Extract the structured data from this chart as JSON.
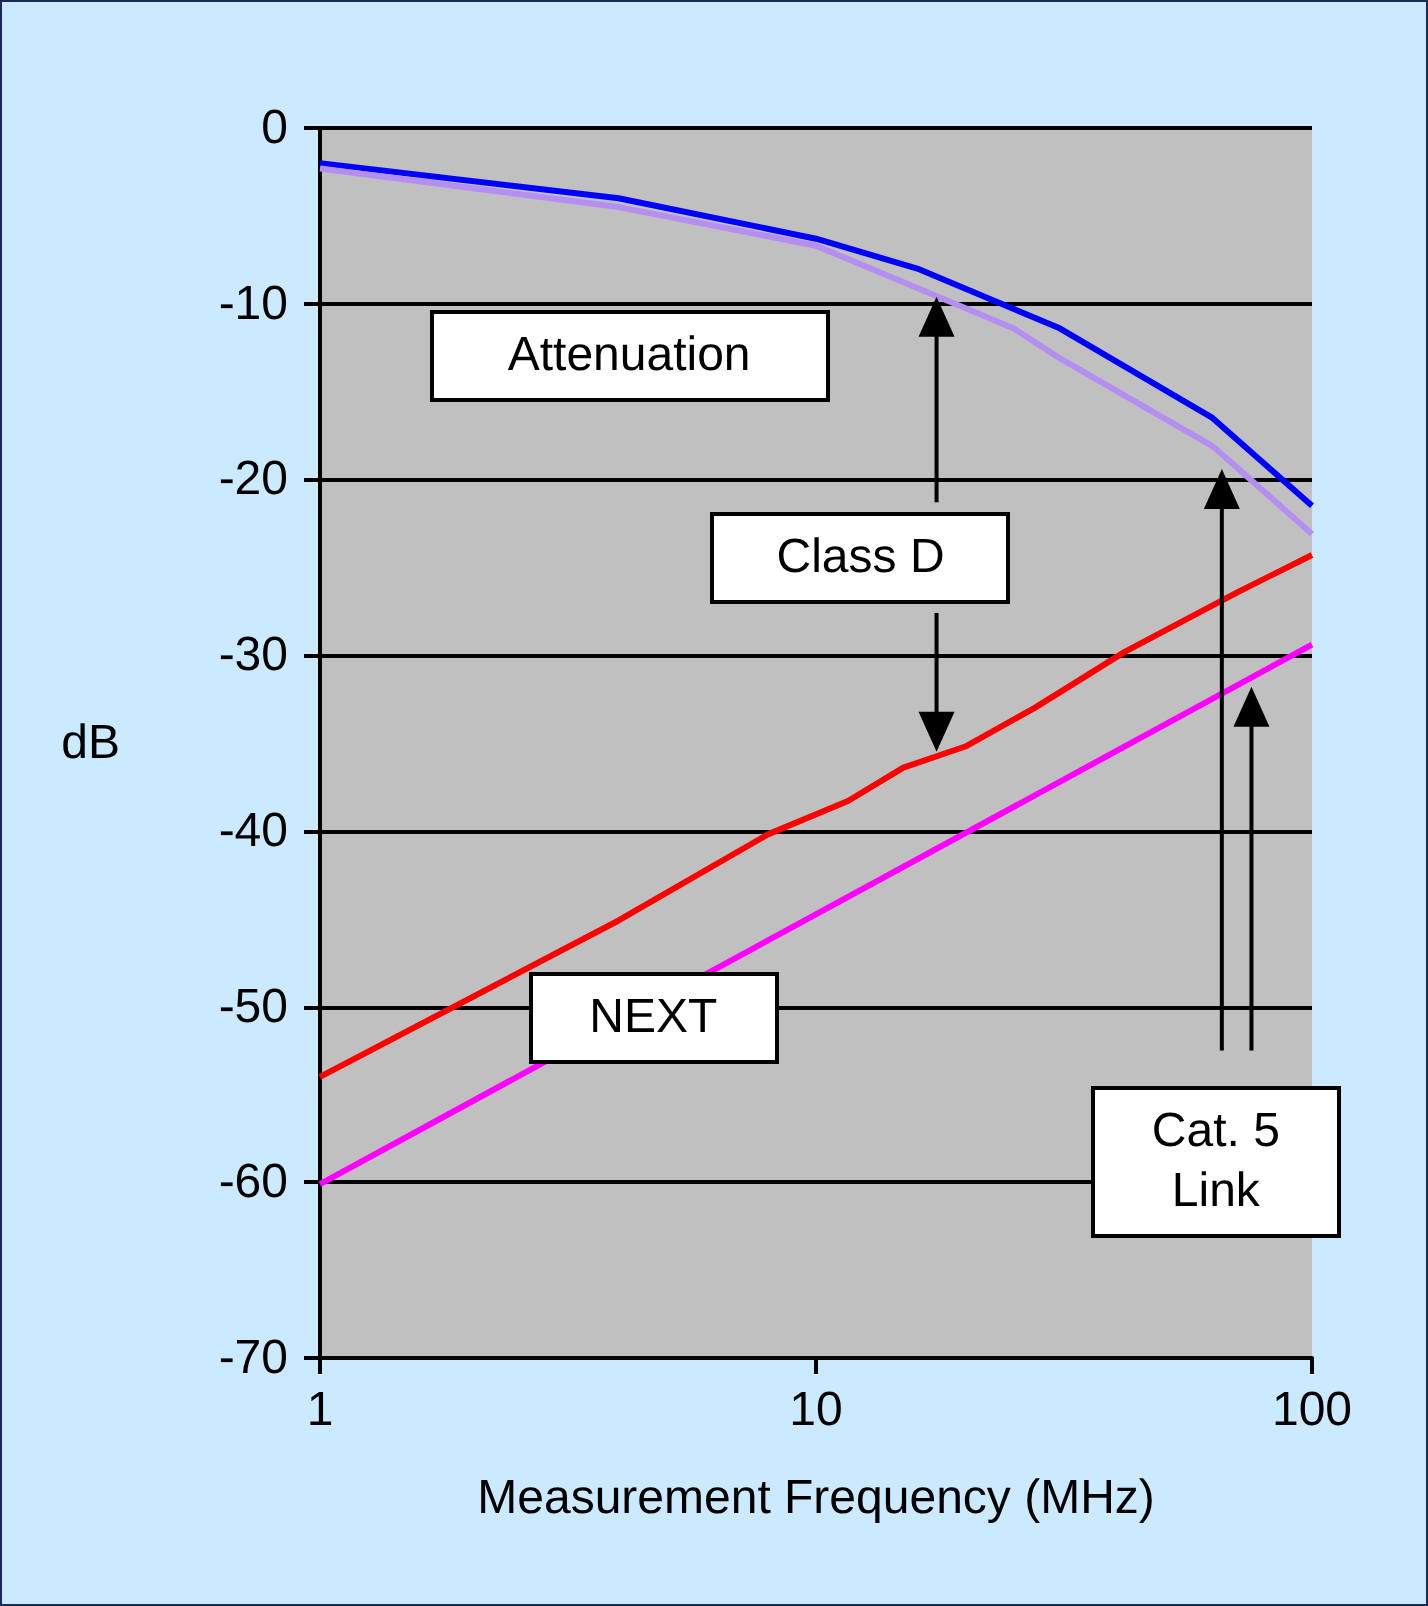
{
  "chart_data": {
    "type": "line",
    "xlabel": "Measurement Frequency (MHz)",
    "ylabel": "dB",
    "series": [
      {
        "color": "#0000ff",
        "x": [
          1,
          4,
          10,
          16,
          31,
          63,
          100
        ],
        "values": [
          -2.0,
          -4.0,
          -6.3,
          -8.0,
          -11.4,
          -16.5,
          -21.5
        ]
      },
      {
        "color": "#b48ef0",
        "x": [
          1,
          4,
          10,
          16,
          25,
          31,
          63,
          100
        ],
        "values": [
          -2.3,
          -4.5,
          -6.7,
          -9.1,
          -11.4,
          -13.1,
          -18.1,
          -23.1
        ]
      },
      {
        "color": "#ff0000",
        "x": [
          1,
          4,
          8,
          11.6,
          15,
          20,
          27.6,
          42,
          71,
          100
        ],
        "values": [
          -54.0,
          -45.1,
          -40.2,
          -38.3,
          -36.4,
          -35.2,
          -33.0,
          -29.8,
          -26.4,
          -24.3
        ]
      },
      {
        "color": "#ff00ff",
        "x": [
          1,
          100
        ],
        "values": [
          -60.1,
          -29.4
        ]
      }
    ],
    "annotations": [
      "Attenuation",
      "Class D",
      "NEXT",
      "Cat. 5 Link"
    ],
    "xlim": [
      1,
      100
    ],
    "xticks": [
      1,
      10,
      100
    ],
    "ylim": [
      -70,
      0
    ],
    "yticks": [
      -70,
      -60,
      -50,
      -40,
      -30,
      -20,
      -10,
      0
    ],
    "log": "x",
    "grid": "y",
    "marker": "none",
    "line_style": "solid"
  }
}
